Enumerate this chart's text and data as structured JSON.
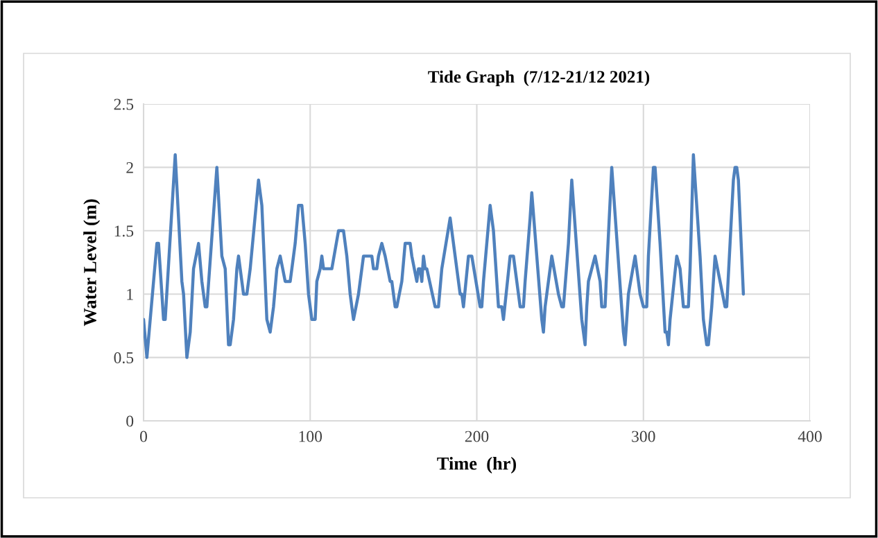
{
  "chart_data": {
    "type": "line",
    "title": "Tide Graph  (7/12-21/12 2021)",
    "xlabel": "Time  (hr)",
    "ylabel": "Water Level (m)",
    "xlim": [
      0,
      400
    ],
    "xticks": [
      0,
      100,
      200,
      300,
      400
    ],
    "ylim": [
      0,
      2.5
    ],
    "yticks": [
      0,
      0.5,
      1,
      1.5,
      2,
      2.5
    ],
    "grid": true,
    "marker": "none",
    "line_style": "solid",
    "series": [
      {
        "color": "#4f81bd",
        "x": [
          0,
          2,
          8,
          9,
          12,
          13,
          19,
          23,
          24,
          26,
          28,
          30,
          33,
          35,
          37,
          38,
          44,
          47,
          49,
          51,
          52,
          54,
          56,
          57,
          60,
          62,
          64,
          69,
          71,
          74,
          76,
          78,
          80,
          82,
          85,
          88,
          90,
          91,
          93,
          95,
          97,
          99,
          101,
          103,
          104,
          106,
          107,
          108,
          113,
          117,
          120,
          122,
          124,
          126,
          129,
          132,
          137,
          138,
          140,
          141,
          143,
          145,
          148,
          149,
          151,
          152,
          155,
          157,
          160,
          161,
          164,
          165,
          166,
          167,
          168,
          169,
          170,
          175,
          177,
          179,
          184,
          187,
          190,
          191,
          192,
          195,
          197,
          202,
          203,
          204,
          208,
          210,
          213,
          215,
          216,
          220,
          222,
          226,
          228,
          229,
          232,
          233,
          239,
          240,
          241,
          242,
          245,
          249,
          251,
          252,
          255,
          257,
          263,
          265,
          266,
          267,
          271,
          274,
          275,
          277,
          278,
          281,
          288,
          289,
          291,
          295,
          298,
          300,
          302,
          303,
          306,
          307,
          310,
          313,
          314,
          315,
          316,
          320,
          322,
          324,
          327,
          328,
          330,
          334,
          336,
          338,
          339,
          341,
          343,
          346,
          349,
          350,
          352,
          354,
          355,
          356,
          357,
          360
        ],
        "values": [
          0.8,
          0.5,
          1.4,
          1.4,
          0.8,
          0.8,
          2.1,
          1.1,
          1.0,
          0.5,
          0.7,
          1.2,
          1.4,
          1.1,
          0.9,
          0.9,
          2.0,
          1.3,
          1.2,
          0.6,
          0.6,
          0.8,
          1.2,
          1.3,
          1.0,
          1.0,
          1.2,
          1.9,
          1.7,
          0.8,
          0.7,
          0.9,
          1.2,
          1.3,
          1.1,
          1.1,
          1.3,
          1.4,
          1.7,
          1.7,
          1.4,
          1.0,
          0.8,
          0.8,
          1.1,
          1.2,
          1.3,
          1.2,
          1.2,
          1.5,
          1.5,
          1.3,
          1.0,
          0.8,
          1.0,
          1.3,
          1.3,
          1.2,
          1.2,
          1.3,
          1.4,
          1.3,
          1.1,
          1.1,
          0.9,
          0.9,
          1.1,
          1.4,
          1.4,
          1.3,
          1.1,
          1.2,
          1.2,
          1.1,
          1.3,
          1.2,
          1.2,
          0.9,
          0.9,
          1.2,
          1.6,
          1.3,
          1.0,
          1.0,
          0.9,
          1.3,
          1.3,
          0.9,
          0.9,
          1.1,
          1.7,
          1.5,
          0.9,
          0.9,
          0.8,
          1.3,
          1.3,
          0.9,
          0.9,
          1.1,
          1.6,
          1.8,
          0.8,
          0.7,
          0.9,
          1.0,
          1.3,
          1.0,
          0.9,
          0.9,
          1.4,
          1.9,
          0.8,
          0.6,
          0.9,
          1.1,
          1.3,
          1.1,
          0.9,
          0.9,
          1.2,
          2.0,
          0.7,
          0.6,
          1.0,
          1.3,
          1.0,
          0.9,
          0.9,
          1.3,
          2.0,
          2.0,
          1.4,
          0.7,
          0.7,
          0.6,
          0.8,
          1.3,
          1.2,
          0.9,
          0.9,
          1.2,
          2.1,
          1.3,
          0.8,
          0.6,
          0.6,
          0.9,
          1.3,
          1.1,
          0.9,
          0.9,
          1.4,
          1.9,
          2.0,
          2.0,
          1.9,
          1.0
        ]
      }
    ]
  }
}
